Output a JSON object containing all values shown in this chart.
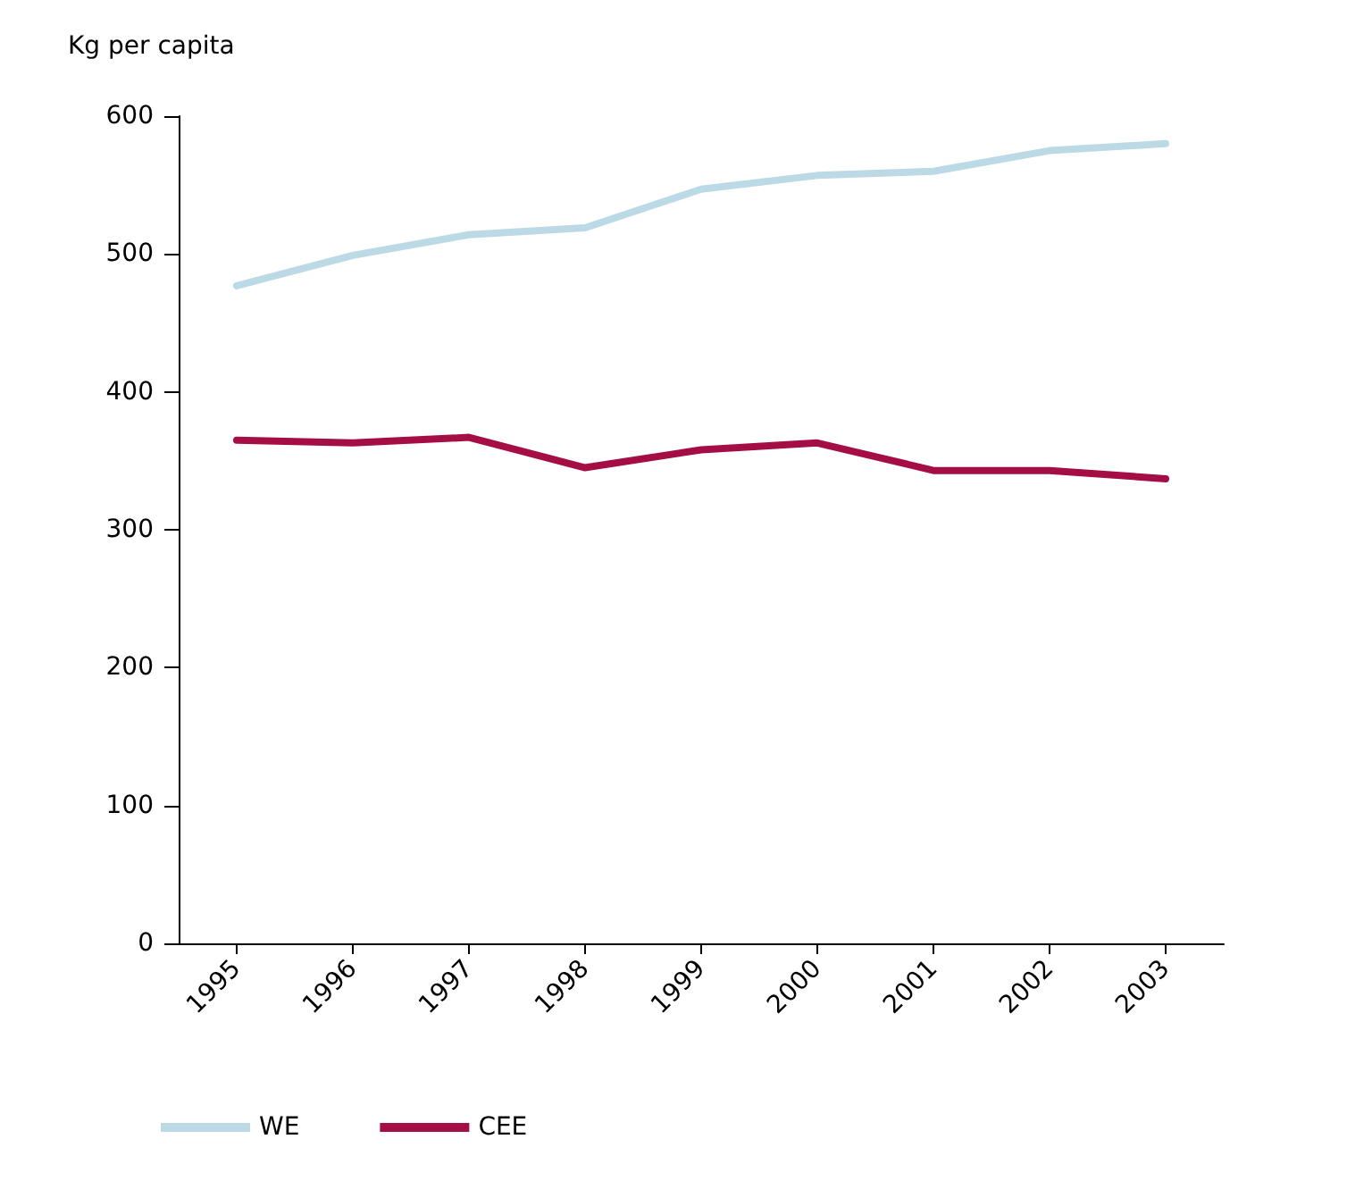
{
  "chart_data": {
    "type": "line",
    "ylabel": "Kg per capita",
    "categories": [
      "1995",
      "1996",
      "1997",
      "1998",
      "1999",
      "2000",
      "2001",
      "2002",
      "2003"
    ],
    "series": [
      {
        "name": "WE",
        "color": "#bcd9e6",
        "values": [
          477,
          499,
          514,
          519,
          547,
          557,
          560,
          575,
          580
        ]
      },
      {
        "name": "CEE",
        "color": "#a50d45",
        "values": [
          365,
          363,
          367,
          345,
          358,
          363,
          343,
          343,
          337
        ]
      }
    ],
    "ylim": [
      0,
      600
    ],
    "yticks": [
      0,
      100,
      200,
      300,
      400,
      500,
      600
    ],
    "grid": false,
    "legend": "bottom left",
    "marker": "none",
    "line_style": "solid"
  }
}
